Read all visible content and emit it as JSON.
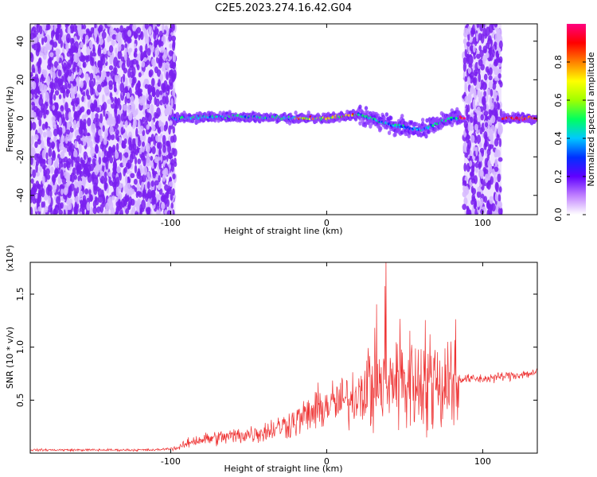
{
  "title": "C2E5.2023.274.16.42.G04",
  "chart_data": [
    {
      "type": "heatmap",
      "xlabel": "Height of straight line (km)",
      "ylabel": "Frequency (Hz)",
      "xlim": [
        -190,
        135
      ],
      "ylim": [
        -50,
        49
      ],
      "xticks": [
        -100,
        0,
        100
      ],
      "xtick_labels": [
        "-100",
        "0",
        "100"
      ],
      "yticks": [
        -40,
        -20,
        0,
        20,
        40
      ],
      "ytick_labels": [
        "-40",
        "-20",
        "0",
        "20",
        "40"
      ],
      "colorbar": {
        "label": "Normalized spectral amplitude",
        "range": [
          0.0,
          1.0
        ],
        "ticks": [
          0.0,
          0.2,
          0.4,
          0.6,
          0.8
        ],
        "tick_labels": [
          "0.0",
          "0.2",
          "0.4",
          "0.6",
          "0.8"
        ],
        "colors": [
          "#ffffff",
          "#c080ff",
          "#6000ff",
          "#0030ff",
          "#00c8ff",
          "#00ff60",
          "#a0ff00",
          "#ffff00",
          "#ff8000",
          "#ff0000",
          "#ff0080"
        ]
      },
      "noise_regions": [
        [
          -190,
          -97
        ],
        [
          88,
          112
        ]
      ],
      "signal_ridge": [
        {
          "x": -100,
          "y": 0
        },
        {
          "x": -60,
          "y": 1
        },
        {
          "x": -20,
          "y": 0
        },
        {
          "x": 0,
          "y": 0
        },
        {
          "x": 20,
          "y": 2
        },
        {
          "x": 40,
          "y": -3
        },
        {
          "x": 60,
          "y": -6
        },
        {
          "x": 80,
          "y": 0
        },
        {
          "x": 135,
          "y": 0
        }
      ]
    },
    {
      "type": "line",
      "xlabel": "Height of straight line (km)",
      "ylabel": "SNR (10 * v/v)",
      "y_multiplier": "(x10⁴)",
      "xlim": [
        -190,
        135
      ],
      "ylim": [
        0,
        1.8
      ],
      "xticks": [
        -100,
        0,
        100
      ],
      "xtick_labels": [
        "-100",
        "0",
        "100"
      ],
      "yticks": [
        0.5,
        1.0,
        1.5
      ],
      "ytick_labels": [
        "0.5",
        "1.0",
        "1.5"
      ],
      "line_color": "#ee3333",
      "envelope": [
        {
          "x": -190,
          "y": 0.03
        },
        {
          "x": -110,
          "y": 0.03
        },
        {
          "x": -95,
          "y": 0.05
        },
        {
          "x": -85,
          "y": 0.12
        },
        {
          "x": -60,
          "y": 0.16
        },
        {
          "x": -40,
          "y": 0.2
        },
        {
          "x": -20,
          "y": 0.3
        },
        {
          "x": 0,
          "y": 0.45
        },
        {
          "x": 15,
          "y": 0.5
        },
        {
          "x": 25,
          "y": 0.65
        },
        {
          "x": 40,
          "y": 0.7
        },
        {
          "x": 60,
          "y": 0.68
        },
        {
          "x": 85,
          "y": 0.7
        },
        {
          "x": 100,
          "y": 0.7
        },
        {
          "x": 135,
          "y": 0.76
        }
      ]
    }
  ]
}
